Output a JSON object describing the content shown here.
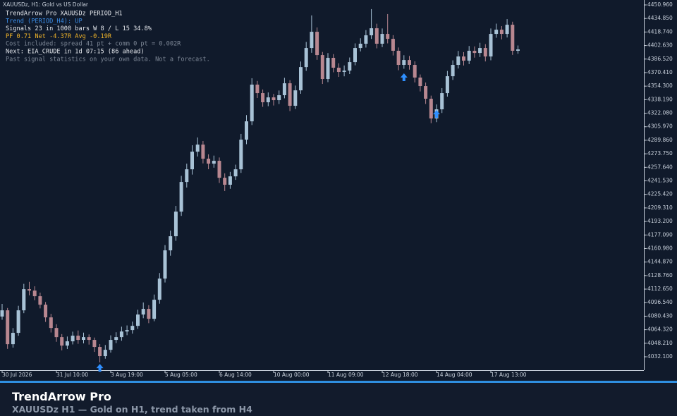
{
  "chart_data": {
    "type": "candlestick",
    "title": "XAUUSDz, H1:  Gold vs US Dollar",
    "categories": [
      "30 Jul 2026",
      null,
      null,
      null,
      null,
      null,
      null,
      null,
      null,
      null,
      "31 Jul 10:00",
      null,
      null,
      null,
      null,
      null,
      null,
      null,
      null,
      null,
      "3 Aug 19:00",
      null,
      null,
      null,
      null,
      null,
      null,
      null,
      null,
      null,
      "5 Aug 05:00",
      null,
      null,
      null,
      null,
      null,
      null,
      null,
      null,
      null,
      "6 Aug 14:00",
      null,
      null,
      null,
      null,
      null,
      null,
      null,
      null,
      null,
      "10 Aug 00:00",
      null,
      null,
      null,
      null,
      null,
      null,
      null,
      null,
      null,
      "11 Aug 09:00",
      null,
      null,
      null,
      null,
      null,
      null,
      null,
      null,
      null,
      "12 Aug 18:00",
      null,
      null,
      null,
      null,
      null,
      null,
      null,
      null,
      null,
      "14 Aug 04:00",
      null,
      null,
      null,
      null,
      null,
      null,
      null,
      null,
      null,
      "17 Aug 13:00",
      null,
      null,
      null,
      null,
      null
    ],
    "open": [
      4080.0,
      4087.4,
      4047.1,
      4060.6,
      4087.4,
      4112.6,
      4110.9,
      4104.2,
      4094.1,
      4079.0,
      4066.4,
      4055.5,
      4045.4,
      4050.5,
      4057.2,
      4052.2,
      4055.5,
      4052.2,
      4043.8,
      4032.9,
      4040.4,
      4052.2,
      4055.5,
      4062.2,
      4063.9,
      4068.9,
      4082.4,
      4089.1,
      4077.3,
      4100.0,
      4125.2,
      4158.8,
      4175.6,
      4204.9,
      4240.2,
      4255.3,
      4276.3,
      4284.7,
      4267.9,
      4262.0,
      4265.4,
      4245.2,
      4236.9,
      4246.9,
      4255.3,
      4290.6,
      4312.4,
      4356.1,
      4346.0,
      4335.1,
      4340.9,
      4337.6,
      4343.5,
      4357.7,
      4330.9,
      4349.3,
      4377.0,
      4399.7,
      4419.0,
      4391.3,
      4362.8,
      4388.0,
      4376.2,
      4371.2,
      4372.8,
      4382.9,
      4399.7,
      4404.8,
      4414.8,
      4423.2,
      4404.8,
      4416.5,
      4410.6,
      4396.4,
      4379.6,
      4385.4,
      4379.6,
      4364.5,
      4354.4,
      4339.3,
      4315.8,
      4326.7,
      4346.0,
      4366.1,
      4379.6,
      4389.6,
      4384.6,
      4396.4,
      4393.8,
      4399.7,
      4389.6,
      4416.5,
      4421.5,
      4416.5,
      4427.4,
      4396.4
    ],
    "high": [
      4095.1,
      4090.2,
      4066.3,
      4092.8,
      4118.9,
      4121.3,
      4116.0,
      4108.5,
      4097.3,
      4083.2,
      4070.8,
      4059.1,
      4056.2,
      4062.0,
      4063.4,
      4060.9,
      4058.7,
      4055.0,
      4047.2,
      4046.1,
      4057.6,
      4061.3,
      4067.9,
      4069.4,
      4074.0,
      4088.1,
      4096.7,
      4093.5,
      4106.2,
      4131.8,
      4165.0,
      4182.3,
      4211.7,
      4247.5,
      4262.0,
      4283.9,
      4293.2,
      4289.0,
      4273.1,
      4271.6,
      4269.3,
      4250.5,
      4252.2,
      4260.8,
      4297.4,
      4319.8,
      4363.7,
      4360.5,
      4350.3,
      4346.8,
      4345.0,
      4349.1,
      4364.2,
      4361.4,
      4355.0,
      4383.6,
      4406.9,
      4438.5,
      4424.2,
      4395.0,
      4393.7,
      4392.4,
      4381.5,
      4378.9,
      4388.4,
      4405.2,
      4411.3,
      4421.0,
      4446.0,
      4428.6,
      4422.9,
      4440.1,
      4415.0,
      4400.3,
      4391.1,
      4390.2,
      4383.8,
      4368.2,
      4358.6,
      4343.0,
      4332.5,
      4351.9,
      4372.4,
      4385.0,
      4396.2,
      4394.8,
      4402.1,
      4401.6,
      4405.9,
      4404.3,
      4423.0,
      4428.7,
      4425.8,
      4434.1,
      4431.0,
      4402.7
    ],
    "low": [
      4076.2,
      4041.5,
      4043.0,
      4057.1,
      4084.0,
      4105.2,
      4099.4,
      4089.7,
      4073.6,
      4061.0,
      4049.9,
      4039.7,
      4041.3,
      4046.8,
      4047.5,
      4048.1,
      4046.6,
      4037.9,
      4025.4,
      4029.8,
      4037.0,
      4048.4,
      4051.2,
      4057.8,
      4059.6,
      4065.3,
      4078.0,
      4072.1,
      4074.4,
      4095.3,
      4120.6,
      4152.4,
      4170.1,
      4199.8,
      4233.6,
      4249.0,
      4270.5,
      4262.3,
      4255.4,
      4257.2,
      4239.0,
      4229.4,
      4232.1,
      4242.7,
      4251.0,
      4285.2,
      4308.0,
      4340.2,
      4329.6,
      4330.4,
      4331.2,
      4333.0,
      4339.8,
      4324.6,
      4327.1,
      4345.2,
      4372.5,
      4394.0,
      4385.6,
      4356.9,
      4359.1,
      4370.8,
      4365.3,
      4366.0,
      4368.7,
      4379.1,
      4395.6,
      4400.2,
      4410.5,
      4399.3,
      4400.7,
      4405.2,
      4390.8,
      4373.2,
      4375.0,
      4373.9,
      4358.7,
      4348.0,
      4333.1,
      4310.2,
      4311.4,
      4322.3,
      4341.8,
      4361.7,
      4375.3,
      4378.9,
      4380.5,
      4388.2,
      4389.0,
      4383.7,
      4385.1,
      4411.9,
      4410.0,
      4412.2,
      4391.5,
      4392.8
    ],
    "close": [
      4087.4,
      4047.1,
      4060.6,
      4087.4,
      4112.6,
      4110.9,
      4104.2,
      4094.1,
      4079.0,
      4066.4,
      4055.5,
      4045.4,
      4050.5,
      4057.2,
      4052.2,
      4055.5,
      4052.2,
      4043.8,
      4032.9,
      4040.4,
      4052.2,
      4055.5,
      4062.2,
      4063.9,
      4068.9,
      4082.4,
      4089.1,
      4077.3,
      4100.0,
      4125.2,
      4158.8,
      4175.6,
      4204.9,
      4240.2,
      4255.3,
      4276.3,
      4284.7,
      4267.9,
      4262.0,
      4265.4,
      4245.2,
      4236.9,
      4246.9,
      4255.3,
      4290.6,
      4312.4,
      4356.1,
      4346.0,
      4335.1,
      4340.9,
      4337.6,
      4343.5,
      4357.7,
      4330.9,
      4349.3,
      4377.0,
      4399.7,
      4419.0,
      4391.3,
      4362.8,
      4388.0,
      4376.2,
      4371.2,
      4372.8,
      4382.9,
      4399.7,
      4404.8,
      4414.8,
      4423.2,
      4404.8,
      4416.5,
      4410.6,
      4396.4,
      4379.6,
      4385.4,
      4379.6,
      4364.5,
      4354.4,
      4339.3,
      4315.8,
      4326.7,
      4346.0,
      4366.1,
      4379.6,
      4389.6,
      4384.6,
      4396.4,
      4393.8,
      4399.7,
      4389.6,
      4416.5,
      4421.5,
      4416.5,
      4427.4,
      4396.4,
      4398.0
    ],
    "up_color": "#a8c2d6",
    "down_color": "#b88790",
    "ylim": [
      4016.15,
      4456.84
    ],
    "yticks": [
      {
        "value": 4032.1,
        "label": "4032.100"
      },
      {
        "value": 4048.21,
        "label": "4048.210"
      },
      {
        "value": 4064.32,
        "label": "4064.320"
      },
      {
        "value": 4080.43,
        "label": "4080.430"
      },
      {
        "value": 4096.54,
        "label": "4096.540"
      },
      {
        "value": 4112.65,
        "label": "4112.650"
      },
      {
        "value": 4128.76,
        "label": "4128.760"
      },
      {
        "value": 4144.87,
        "label": "4144.870"
      },
      {
        "value": 4160.98,
        "label": "4160.980"
      },
      {
        "value": 4177.09,
        "label": "4177.090"
      },
      {
        "value": 4193.2,
        "label": "4193.200"
      },
      {
        "value": 4209.31,
        "label": "4209.310"
      },
      {
        "value": 4225.42,
        "label": "4225.420"
      },
      {
        "value": 4241.53,
        "label": "4241.530"
      },
      {
        "value": 4257.64,
        "label": "4257.640"
      },
      {
        "value": 4273.75,
        "label": "4273.750"
      },
      {
        "value": 4289.86,
        "label": "4289.860"
      },
      {
        "value": 4305.97,
        "label": "4305.970"
      },
      {
        "value": 4322.08,
        "label": "4322.080"
      },
      {
        "value": 4338.19,
        "label": "4338.190"
      },
      {
        "value": 4354.3,
        "label": "4354.300"
      },
      {
        "value": 4370.41,
        "label": "4370.410"
      },
      {
        "value": 4386.52,
        "label": "4386.520"
      },
      {
        "value": 4402.63,
        "label": "4402.630"
      },
      {
        "value": 4418.74,
        "label": "4418.740"
      },
      {
        "value": 4434.85,
        "label": "4434.850"
      },
      {
        "value": 4450.96,
        "label": "4450.960"
      }
    ],
    "signals": {
      "x": [
        18,
        74,
        80
      ],
      "values": [
        4018.6,
        4364.5,
        4320.8
      ],
      "color": "#2f8fff"
    },
    "overlay": [
      {
        "text": "TrendArrow Pro  XAUUSDz PERIOD_H1",
        "color": "#e6e9ee"
      },
      {
        "text": "Trend (PERIOD_H4): UP",
        "color": "#3b8ee8"
      },
      {
        "text": "Signals 23 in 1000 bars   W 8 / L 15   34.8%",
        "color": "#e6e9ee"
      },
      {
        "text": "PF 0.71   Net -4.37R   Avg -0.19R",
        "color": "#f0b429"
      },
      {
        "text": "Cost included: spread 41 pt + comm 0 pt = 0.002R",
        "color": "#7d8796"
      },
      {
        "text": "Next: EIA_CRUDE in 1d 07:15  (86 ahead)",
        "color": "#e6e9ee"
      },
      {
        "text": "Past signal statistics on your own data. Not a forecast.",
        "color": "#7d8796"
      }
    ]
  },
  "footer": {
    "title": "TrendArrow Pro",
    "subtitle": "XAUUSDz  H1  —  Gold on H1, trend taken from H4"
  }
}
